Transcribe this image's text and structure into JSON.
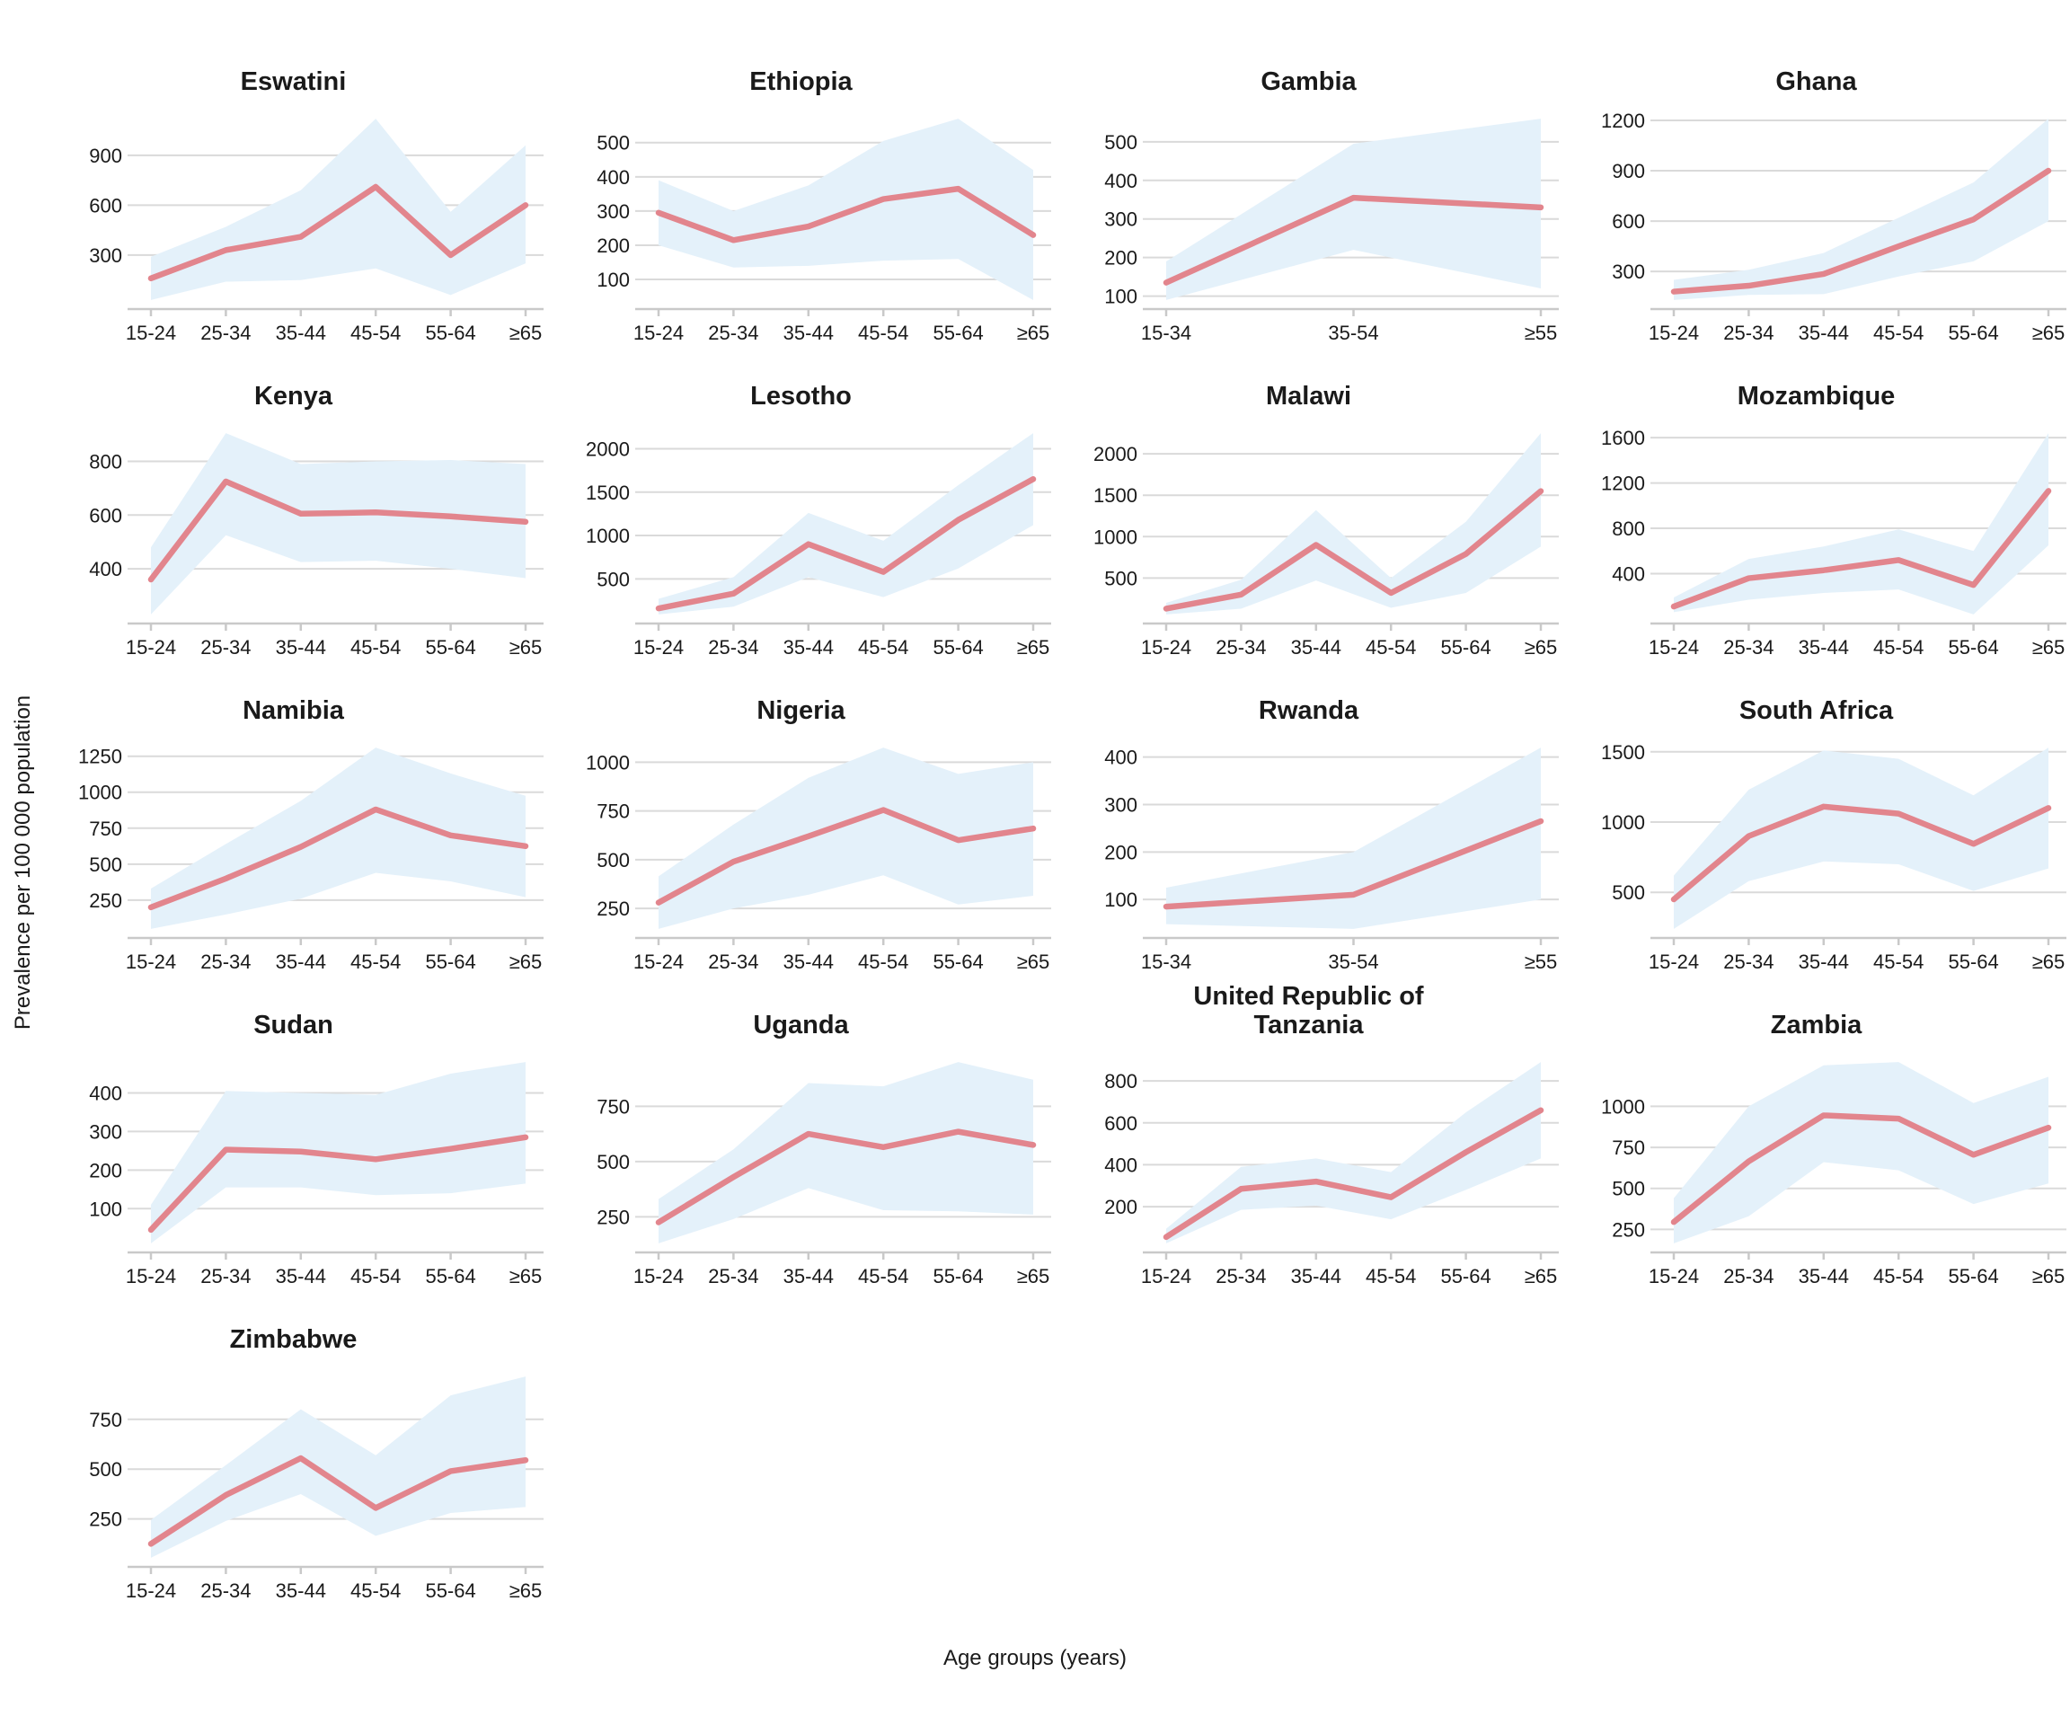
{
  "figure": {
    "xlabel": "Age groups (years)",
    "ylabel": "Prevalence per 100 000 population"
  },
  "chart_data": {
    "type": "line",
    "subtype": "faceted-line-with-confidence-band",
    "xlabel": "Age groups (years)",
    "ylabel": "Prevalence per 100 000 population",
    "legend_position": "none",
    "grid": "horizontal-only",
    "line_color": "#E2858D",
    "band_color": "#E4F1FA",
    "grid_color": "#DADADA",
    "axis_color": "#C9C9C9",
    "text_color": "#1a1a1a",
    "age_groups_6": [
      "15-24",
      "25-34",
      "35-44",
      "45-54",
      "55-64",
      "≥65"
    ],
    "age_groups_3": [
      "15-34",
      "35-54",
      "≥55"
    ],
    "panels": [
      {
        "country": "Eswatini",
        "title": "Eswatini",
        "categories": [
          "15-24",
          "25-34",
          "35-44",
          "45-54",
          "55-64",
          "≥65"
        ],
        "yticks": [
          300,
          600,
          900
        ],
        "values": [
          160,
          330,
          410,
          710,
          300,
          600
        ],
        "lower": [
          30,
          140,
          150,
          220,
          60,
          250
        ],
        "upper": [
          290,
          470,
          690,
          1120,
          560,
          960
        ]
      },
      {
        "country": "Ethiopia",
        "title": "Ethiopia",
        "categories": [
          "15-24",
          "25-34",
          "35-44",
          "45-54",
          "55-64",
          "≥65"
        ],
        "yticks": [
          100,
          200,
          300,
          400,
          500
        ],
        "values": [
          295,
          215,
          255,
          335,
          365,
          230
        ],
        "lower": [
          200,
          135,
          140,
          155,
          160,
          40
        ],
        "upper": [
          390,
          300,
          375,
          505,
          570,
          420
        ]
      },
      {
        "country": "Gambia",
        "title": "Gambia",
        "categories": [
          "15-34",
          "35-54",
          "≥55"
        ],
        "yticks": [
          100,
          200,
          300,
          400,
          500
        ],
        "values": [
          135,
          355,
          330
        ],
        "lower": [
          90,
          220,
          120
        ],
        "upper": [
          190,
          495,
          560
        ]
      },
      {
        "country": "Ghana",
        "title": "Ghana",
        "categories": [
          "15-24",
          "25-34",
          "35-44",
          "45-54",
          "55-64",
          "≥65"
        ],
        "yticks": [
          300,
          600,
          900,
          1200
        ],
        "values": [
          180,
          215,
          285,
          450,
          610,
          900
        ],
        "lower": [
          130,
          160,
          165,
          270,
          360,
          600
        ],
        "upper": [
          250,
          310,
          410,
          620,
          830,
          1210
        ]
      },
      {
        "country": "Kenya",
        "title": "Kenya",
        "categories": [
          "15-24",
          "25-34",
          "35-44",
          "45-54",
          "55-64",
          "≥65"
        ],
        "yticks": [
          400,
          600,
          800
        ],
        "values": [
          360,
          725,
          605,
          610,
          595,
          575
        ],
        "lower": [
          230,
          525,
          425,
          430,
          400,
          365
        ],
        "upper": [
          480,
          905,
          790,
          800,
          805,
          790
        ]
      },
      {
        "country": "Lesotho",
        "title": "Lesotho",
        "categories": [
          "15-24",
          "25-34",
          "35-44",
          "45-54",
          "55-64",
          "≥65"
        ],
        "yticks": [
          500,
          1000,
          1500,
          2000
        ],
        "values": [
          160,
          330,
          900,
          580,
          1180,
          1650
        ],
        "lower": [
          90,
          180,
          520,
          290,
          620,
          1120
        ],
        "upper": [
          270,
          520,
          1260,
          940,
          1580,
          2180
        ]
      },
      {
        "country": "Malawi",
        "title": "Malawi",
        "categories": [
          "15-24",
          "25-34",
          "35-44",
          "45-54",
          "55-64",
          "≥65"
        ],
        "yticks": [
          500,
          1000,
          1500,
          2000
        ],
        "values": [
          130,
          300,
          900,
          320,
          790,
          1550
        ],
        "lower": [
          60,
          130,
          470,
          140,
          320,
          880
        ],
        "upper": [
          200,
          480,
          1320,
          500,
          1180,
          2250
        ]
      },
      {
        "country": "Mozambique",
        "title": "Mozambique",
        "categories": [
          "15-24",
          "25-34",
          "35-44",
          "45-54",
          "55-64",
          "≥65"
        ],
        "yticks": [
          400,
          800,
          1200,
          1600
        ],
        "values": [
          110,
          360,
          430,
          520,
          300,
          1130
        ],
        "lower": [
          60,
          170,
          230,
          260,
          40,
          650
        ],
        "upper": [
          190,
          530,
          640,
          790,
          600,
          1640
        ]
      },
      {
        "country": "Namibia",
        "title": "Namibia",
        "categories": [
          "15-24",
          "25-34",
          "35-44",
          "45-54",
          "55-64",
          "≥65"
        ],
        "yticks": [
          250,
          500,
          750,
          1000,
          1250
        ],
        "values": [
          200,
          400,
          620,
          880,
          700,
          625
        ],
        "lower": [
          50,
          150,
          260,
          440,
          380,
          270
        ],
        "upper": [
          330,
          640,
          940,
          1310,
          1130,
          975
        ]
      },
      {
        "country": "Nigeria",
        "title": "Nigeria",
        "categories": [
          "15-24",
          "25-34",
          "35-44",
          "45-54",
          "55-64",
          "≥65"
        ],
        "yticks": [
          250,
          500,
          750,
          1000
        ],
        "values": [
          280,
          490,
          620,
          755,
          600,
          660
        ],
        "lower": [
          145,
          250,
          320,
          420,
          270,
          315
        ],
        "upper": [
          415,
          680,
          920,
          1075,
          940,
          1000
        ]
      },
      {
        "country": "Rwanda",
        "title": "Rwanda",
        "categories": [
          "15-34",
          "35-54",
          "≥55"
        ],
        "yticks": [
          100,
          200,
          300,
          400
        ],
        "values": [
          85,
          110,
          265
        ],
        "lower": [
          48,
          38,
          100
        ],
        "upper": [
          125,
          200,
          420
        ]
      },
      {
        "country": "South Africa",
        "title": "South Africa",
        "categories": [
          "15-24",
          "25-34",
          "35-44",
          "45-54",
          "55-64",
          "≥65"
        ],
        "yticks": [
          500,
          1000,
          1500
        ],
        "values": [
          450,
          900,
          1110,
          1060,
          845,
          1100
        ],
        "lower": [
          240,
          580,
          720,
          700,
          510,
          670
        ],
        "upper": [
          620,
          1230,
          1510,
          1450,
          1190,
          1530
        ]
      },
      {
        "country": "Sudan",
        "title": "Sudan",
        "categories": [
          "15-24",
          "25-34",
          "35-44",
          "45-54",
          "55-64",
          "≥65"
        ],
        "yticks": [
          100,
          200,
          300,
          400
        ],
        "values": [
          45,
          253,
          248,
          228,
          255,
          285
        ],
        "lower": [
          10,
          155,
          155,
          135,
          140,
          165
        ],
        "upper": [
          110,
          405,
          400,
          395,
          450,
          480
        ]
      },
      {
        "country": "Uganda",
        "title": "Uganda",
        "categories": [
          "15-24",
          "25-34",
          "35-44",
          "45-54",
          "55-64",
          "≥65"
        ],
        "yticks": [
          250,
          500,
          750
        ],
        "values": [
          225,
          430,
          625,
          565,
          635,
          575
        ],
        "lower": [
          130,
          240,
          380,
          280,
          275,
          260
        ],
        "upper": [
          330,
          555,
          855,
          840,
          950,
          870
        ]
      },
      {
        "country": "United Republic of Tanzania",
        "title": "United Republic of\nTanzania",
        "categories": [
          "15-24",
          "25-34",
          "35-44",
          "45-54",
          "55-64",
          "≥65"
        ],
        "yticks": [
          200,
          400,
          600,
          800
        ],
        "values": [
          55,
          285,
          320,
          245,
          460,
          660
        ],
        "lower": [
          25,
          185,
          205,
          140,
          280,
          430
        ],
        "upper": [
          95,
          390,
          430,
          365,
          650,
          890
        ]
      },
      {
        "country": "Zambia",
        "title": "Zambia",
        "categories": [
          "15-24",
          "25-34",
          "35-44",
          "45-54",
          "55-64",
          "≥65"
        ],
        "yticks": [
          250,
          500,
          750,
          1000
        ],
        "values": [
          295,
          665,
          945,
          925,
          705,
          870
        ],
        "lower": [
          165,
          330,
          660,
          610,
          405,
          530
        ],
        "upper": [
          440,
          1000,
          1250,
          1270,
          1020,
          1180
        ]
      },
      {
        "country": "Zimbabwe",
        "title": "Zimbabwe",
        "categories": [
          "15-24",
          "25-34",
          "35-44",
          "45-54",
          "55-64",
          "≥65"
        ],
        "yticks": [
          250,
          500,
          750
        ],
        "values": [
          125,
          370,
          555,
          305,
          490,
          545
        ],
        "lower": [
          55,
          240,
          375,
          165,
          280,
          310
        ],
        "upper": [
          245,
          520,
          800,
          570,
          870,
          965
        ]
      }
    ]
  }
}
